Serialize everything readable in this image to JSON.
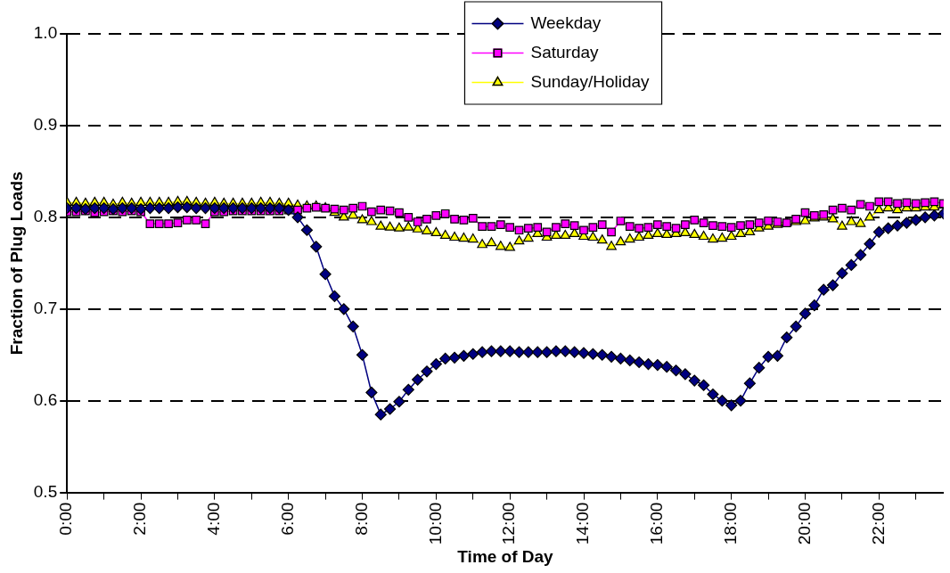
{
  "chart_data": {
    "type": "line",
    "xlabel": "Time of Day",
    "ylabel": "Fraction of Plug Loads",
    "x": [
      0,
      0.25,
      0.5,
      0.75,
      1,
      1.25,
      1.5,
      1.75,
      2,
      2.25,
      2.5,
      2.75,
      3,
      3.25,
      3.5,
      3.75,
      4,
      4.25,
      4.5,
      4.75,
      5,
      5.25,
      5.5,
      5.75,
      6,
      6.25,
      6.5,
      6.75,
      7,
      7.25,
      7.5,
      7.75,
      8,
      8.25,
      8.5,
      8.75,
      9,
      9.25,
      9.5,
      9.75,
      10,
      10.25,
      10.5,
      10.75,
      11,
      11.25,
      11.5,
      11.75,
      12,
      12.25,
      12.5,
      12.75,
      13,
      13.25,
      13.5,
      13.75,
      14,
      14.25,
      14.5,
      14.75,
      15,
      15.25,
      15.5,
      15.75,
      16,
      16.25,
      16.5,
      16.75,
      17,
      17.25,
      17.5,
      17.75,
      18,
      18.25,
      18.5,
      18.75,
      19,
      19.25,
      19.5,
      19.75,
      20,
      20.25,
      20.5,
      20.75,
      21,
      21.25,
      21.5,
      21.75,
      22,
      22.25,
      22.5,
      22.75,
      23,
      23.25,
      23.5,
      23.75
    ],
    "series": [
      {
        "name": "Weekday",
        "color": "#000080",
        "marker": "diamond",
        "values": [
          0.81,
          0.81,
          0.809,
          0.81,
          0.81,
          0.809,
          0.81,
          0.81,
          0.809,
          0.81,
          0.81,
          0.81,
          0.811,
          0.811,
          0.81,
          0.81,
          0.81,
          0.81,
          0.81,
          0.81,
          0.81,
          0.81,
          0.81,
          0.81,
          0.808,
          0.8,
          0.786,
          0.768,
          0.738,
          0.714,
          0.7,
          0.681,
          0.65,
          0.609,
          0.585,
          0.591,
          0.599,
          0.612,
          0.623,
          0.632,
          0.64,
          0.646,
          0.647,
          0.649,
          0.651,
          0.653,
          0.654,
          0.654,
          0.654,
          0.653,
          0.653,
          0.653,
          0.653,
          0.654,
          0.654,
          0.653,
          0.652,
          0.651,
          0.65,
          0.648,
          0.646,
          0.644,
          0.642,
          0.64,
          0.639,
          0.637,
          0.633,
          0.629,
          0.622,
          0.617,
          0.607,
          0.6,
          0.595,
          0.6,
          0.619,
          0.636,
          0.648,
          0.649,
          0.669,
          0.681,
          0.695,
          0.704,
          0.721,
          0.726,
          0.739,
          0.748,
          0.759,
          0.771,
          0.784,
          0.788,
          0.791,
          0.794,
          0.797,
          0.8,
          0.802,
          0.804
        ]
      },
      {
        "name": "Saturday",
        "color": "#ff00ff",
        "marker": "square",
        "values": [
          0.806,
          0.806,
          0.807,
          0.805,
          0.806,
          0.807,
          0.806,
          0.807,
          0.806,
          0.793,
          0.793,
          0.793,
          0.794,
          0.797,
          0.797,
          0.793,
          0.806,
          0.806,
          0.807,
          0.807,
          0.807,
          0.807,
          0.807,
          0.807,
          0.808,
          0.808,
          0.81,
          0.811,
          0.81,
          0.809,
          0.808,
          0.81,
          0.812,
          0.806,
          0.808,
          0.807,
          0.805,
          0.8,
          0.795,
          0.798,
          0.802,
          0.804,
          0.798,
          0.797,
          0.799,
          0.79,
          0.79,
          0.792,
          0.789,
          0.786,
          0.788,
          0.789,
          0.784,
          0.789,
          0.793,
          0.791,
          0.786,
          0.789,
          0.792,
          0.784,
          0.796,
          0.79,
          0.788,
          0.789,
          0.792,
          0.79,
          0.788,
          0.792,
          0.797,
          0.794,
          0.791,
          0.79,
          0.789,
          0.791,
          0.792,
          0.794,
          0.796,
          0.795,
          0.794,
          0.798,
          0.805,
          0.802,
          0.803,
          0.808,
          0.81,
          0.808,
          0.814,
          0.812,
          0.817,
          0.817,
          0.815,
          0.816,
          0.815,
          0.816,
          0.817,
          0.815
        ]
      },
      {
        "name": "Sunday/Holiday",
        "color": "#ffff00",
        "marker": "triangle",
        "values": [
          0.816,
          0.816,
          0.815,
          0.816,
          0.816,
          0.814,
          0.816,
          0.815,
          0.816,
          0.816,
          0.816,
          0.816,
          0.817,
          0.817,
          0.816,
          0.815,
          0.816,
          0.815,
          0.815,
          0.815,
          0.815,
          0.816,
          0.816,
          0.815,
          0.815,
          0.813,
          0.812,
          0.812,
          0.81,
          0.805,
          0.8,
          0.802,
          0.797,
          0.795,
          0.79,
          0.789,
          0.788,
          0.789,
          0.787,
          0.785,
          0.783,
          0.78,
          0.778,
          0.777,
          0.776,
          0.77,
          0.772,
          0.768,
          0.767,
          0.774,
          0.777,
          0.782,
          0.778,
          0.78,
          0.78,
          0.782,
          0.779,
          0.778,
          0.775,
          0.768,
          0.773,
          0.776,
          0.778,
          0.78,
          0.782,
          0.781,
          0.782,
          0.783,
          0.781,
          0.779,
          0.776,
          0.777,
          0.779,
          0.782,
          0.784,
          0.788,
          0.79,
          0.792,
          0.794,
          0.795,
          0.796,
          0.799,
          0.8,
          0.798,
          0.79,
          0.795,
          0.793,
          0.8,
          0.808,
          0.81,
          0.808,
          0.81,
          0.81,
          0.811,
          0.811,
          0.813
        ]
      }
    ],
    "xlim": [
      0,
      23.75
    ],
    "xticks": [
      {
        "value": 0,
        "label": "0:00"
      },
      {
        "value": 1,
        "label": null
      },
      {
        "value": 2,
        "label": "2:00"
      },
      {
        "value": 3,
        "label": null
      },
      {
        "value": 4,
        "label": "4:00"
      },
      {
        "value": 5,
        "label": null
      },
      {
        "value": 6,
        "label": "6:00"
      },
      {
        "value": 7,
        "label": null
      },
      {
        "value": 8,
        "label": "8:00"
      },
      {
        "value": 9,
        "label": null
      },
      {
        "value": 10,
        "label": "10:00"
      },
      {
        "value": 11,
        "label": null
      },
      {
        "value": 12,
        "label": "12:00"
      },
      {
        "value": 13,
        "label": null
      },
      {
        "value": 14,
        "label": "14:00"
      },
      {
        "value": 15,
        "label": null
      },
      {
        "value": 16,
        "label": "16:00"
      },
      {
        "value": 17,
        "label": null
      },
      {
        "value": 18,
        "label": "18:00"
      },
      {
        "value": 19,
        "label": null
      },
      {
        "value": 20,
        "label": "20:00"
      },
      {
        "value": 21,
        "label": null
      },
      {
        "value": 22,
        "label": "22:00"
      },
      {
        "value": 23,
        "label": null
      }
    ],
    "ylim": [
      0.5,
      1.0
    ],
    "yticks": [
      {
        "value": 0.5,
        "label": "0.5"
      },
      {
        "value": 0.6,
        "label": "0.6"
      },
      {
        "value": 0.7,
        "label": "0.7"
      },
      {
        "value": 0.8,
        "label": "0.8"
      },
      {
        "value": 0.9,
        "label": "0.9"
      },
      {
        "value": 1.0,
        "label": "1.0"
      }
    ],
    "grid": "y",
    "legend": "top",
    "line_style": "solid"
  }
}
